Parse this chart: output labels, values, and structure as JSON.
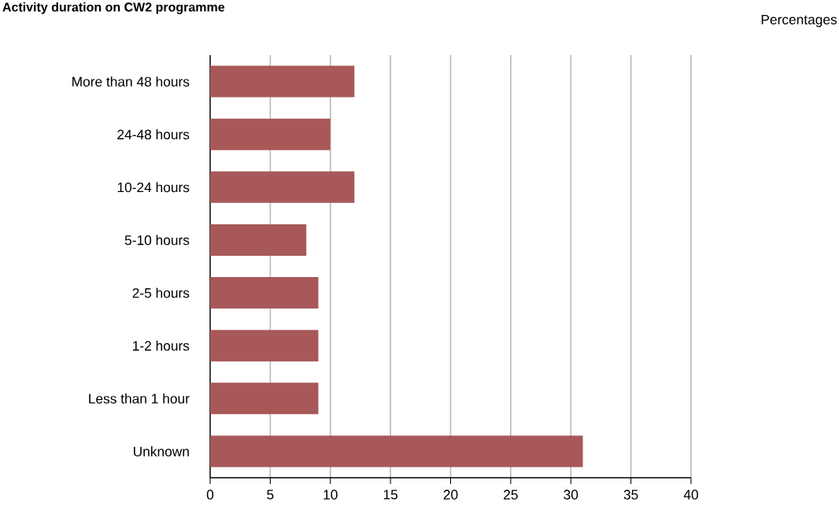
{
  "chart_data": {
    "type": "bar",
    "orientation": "horizontal",
    "title": "Activity duration on CW2 programme",
    "annotations": [
      "Percentages"
    ],
    "categories": [
      "More than 48 hours",
      "24-48 hours",
      "10-24 hours",
      "5-10 hours",
      "2-5 hours",
      "1-2 hours",
      "Less than 1 hour",
      "Unknown"
    ],
    "values": [
      12,
      10,
      12,
      8,
      9,
      9,
      9,
      31
    ],
    "color": "#a85858",
    "xlim": [
      0,
      40
    ],
    "xticks": [
      0,
      5,
      10,
      15,
      20,
      25,
      30,
      35,
      40
    ],
    "grid": "x"
  }
}
